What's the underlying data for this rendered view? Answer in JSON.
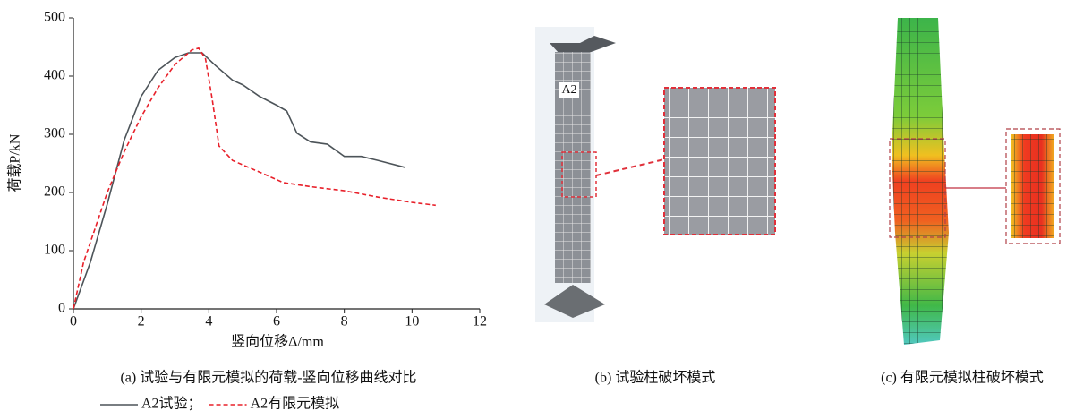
{
  "chart_data": {
    "type": "line",
    "x_label": "竖向位移Δ/mm",
    "y_label": "荷载P/kN",
    "caption": "(a) 试验与有限元模拟的荷载-竖向位移曲线对比",
    "xlim": [
      0,
      12
    ],
    "xticks": [
      0,
      2,
      4,
      6,
      8,
      10,
      12
    ],
    "ylim": [
      0,
      500
    ],
    "yticks": [
      0,
      100,
      200,
      300,
      400,
      500
    ],
    "series": [
      {
        "name": "A2试验；",
        "color": "#4d5459",
        "dash": false,
        "x": [
          0,
          0.5,
          1,
          1.5,
          2,
          2.5,
          3,
          3.4,
          3.8,
          4.2,
          4.7,
          5,
          5.5,
          6,
          6.3,
          6.6,
          7,
          7.5,
          8,
          8.5,
          9,
          9.8
        ],
        "values": [
          0,
          80,
          180,
          290,
          365,
          410,
          432,
          440,
          440,
          418,
          393,
          385,
          365,
          350,
          340,
          302,
          287,
          283,
          262,
          262,
          255,
          243
        ]
      },
      {
        "name": "A2有限元模拟",
        "color": "#e8202a",
        "dash": true,
        "x": [
          0,
          0.3,
          1,
          1.5,
          2,
          2.5,
          3,
          3.5,
          3.7,
          3.9,
          4.1,
          4.3,
          4.7,
          5.5,
          6.2,
          7,
          8,
          9,
          10,
          10.7
        ],
        "values": [
          0,
          80,
          200,
          270,
          330,
          380,
          420,
          445,
          448,
          430,
          360,
          280,
          255,
          235,
          217,
          210,
          203,
          192,
          183,
          178
        ]
      }
    ]
  },
  "panels": {
    "b": {
      "label": "A2",
      "caption": "(b) 试验柱破坏模式"
    },
    "c": {
      "caption": "(c) 有限元模拟柱破坏模式"
    }
  }
}
